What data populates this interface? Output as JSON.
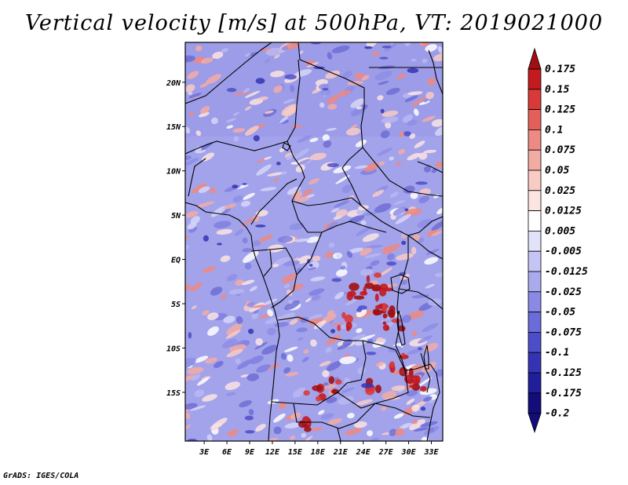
{
  "title": "Vertical velocity [m/s] at 500hPa, VT: 2019021000",
  "footer": "GrADS: IGES/COLA",
  "map": {
    "region": "Central Africa",
    "lon_range": [
      0.5,
      34.5
    ],
    "lat_range": [
      -20.5,
      24.5
    ],
    "x_ticks": [
      "3E",
      "6E",
      "9E",
      "12E",
      "15E",
      "18E",
      "21E",
      "24E",
      "27E",
      "30E",
      "33E"
    ],
    "x_tick_values": [
      3,
      6,
      9,
      12,
      15,
      18,
      21,
      24,
      27,
      30,
      33
    ],
    "y_ticks": [
      "20N",
      "15N",
      "10N",
      "5N",
      "EQ",
      "5S",
      "10S",
      "15S"
    ],
    "y_tick_values": [
      20,
      15,
      10,
      5,
      0,
      -5,
      -10,
      -15
    ]
  },
  "colorbar": {
    "labels": [
      "0.175",
      "0.15",
      "0.125",
      "0.1",
      "0.075",
      "0.05",
      "0.025",
      "0.0125",
      "0.005",
      "-0.005",
      "-0.0125",
      "-0.025",
      "-0.05",
      "-0.075",
      "-0.1",
      "-0.125",
      "-0.175",
      "-0.2"
    ],
    "colors": [
      "#a10f12",
      "#c21a1e",
      "#d93a38",
      "#e3605a",
      "#ec8a83",
      "#f3aca4",
      "#f8cbc5",
      "#fce4e0",
      "#ffffff",
      "#e2e2fb",
      "#c5c5f5",
      "#a9a9ee",
      "#8a8ae6",
      "#6b6bd9",
      "#4d4dc9",
      "#3434b3",
      "#201e9a",
      "#120d7a"
    ]
  }
}
